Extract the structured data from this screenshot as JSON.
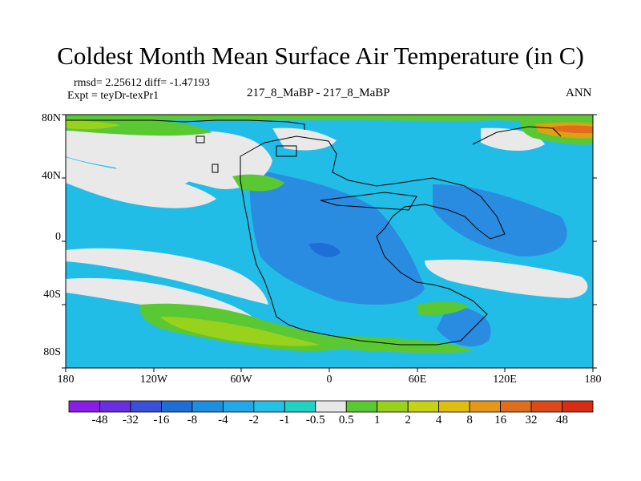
{
  "header": {
    "title": "Coldest Month Mean Surface Air Temperature (in C)",
    "stats": "rmsd= 2.25612 diff= -1.47193",
    "expt": "Expt = teyDr-texPr1",
    "case_id": "217_8_MaBP - 217_8_MaBP",
    "season": "ANN"
  },
  "axes": {
    "y_labels": [
      "80N",
      "40N",
      "0",
      "40S",
      "80S"
    ],
    "x_labels": [
      "180",
      "120W",
      "60W",
      "0",
      "60E",
      "120E",
      "180"
    ]
  },
  "colorbar": {
    "labels": [
      "-48",
      "-32",
      "-16",
      "-8",
      "-4",
      "-2",
      "-1",
      "-0.5",
      "0.5",
      "1",
      "2",
      "4",
      "8",
      "16",
      "32",
      "48"
    ],
    "colors": [
      "#8a1ee6",
      "#6a2de0",
      "#3a50d8",
      "#1e6ed8",
      "#1e8ee0",
      "#22a8e8",
      "#24c0e8",
      "#20d2c4",
      "#e8e8e8",
      "#5ac832",
      "#98d21c",
      "#c8d214",
      "#e0be10",
      "#e8961a",
      "#e06c1e",
      "#dc4a1a",
      "#d82c14"
    ]
  },
  "map_colors": {
    "ocean_base": "#22bde6",
    "neutral": "#e9e9e9",
    "deep_cool": "#2a8ce0",
    "cooler": "#1e6ed8",
    "warm_green": "#5ac832",
    "warm_yellow": "#98d21c",
    "warm_orange": "#e0a014",
    "warm_red": "#e06c1e",
    "coastline": "#000000"
  }
}
